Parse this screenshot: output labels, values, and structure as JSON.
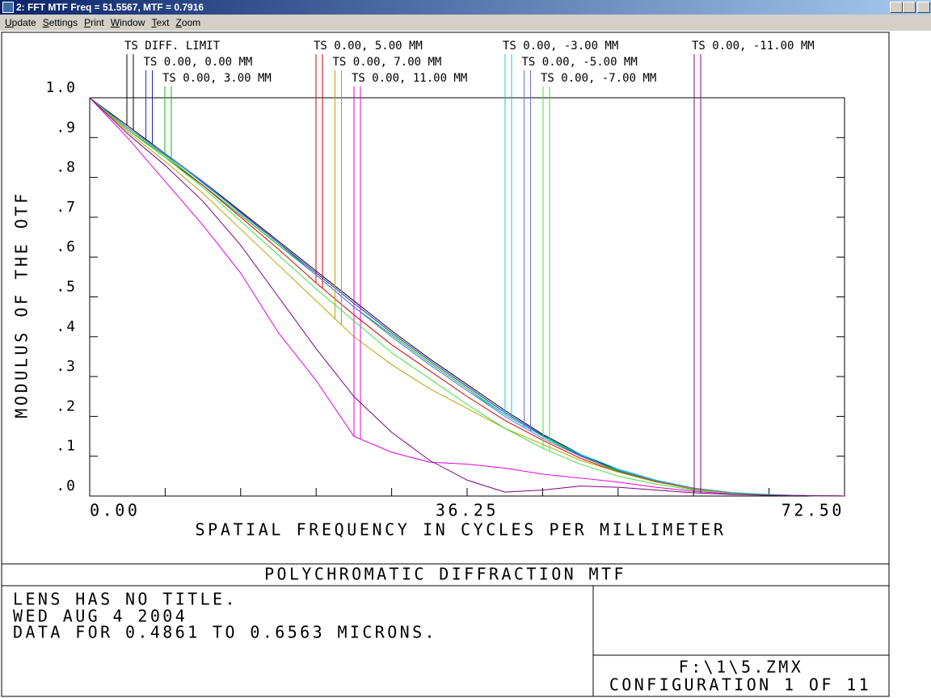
{
  "window": {
    "title": "2: FFT MTF Freq = 51.5567, MTF = 0.7916"
  },
  "menu": [
    "Update",
    "Settings",
    "Print",
    "Window",
    "Text",
    "Zoom"
  ],
  "chart_data": {
    "type": "line",
    "ylabel": "MODULUS OF THE OTF",
    "xlabel": "SPATIAL FREQUENCY IN CYCLES PER MILLIMETER",
    "xlim": [
      0,
      72.5
    ],
    "ylim": [
      0,
      1
    ],
    "xticks": [
      {
        "value": 0,
        "label": "0.00"
      },
      36.25,
      {
        "value": 72.5,
        "label": "72.50"
      }
    ],
    "xminor_ticks": [
      7.25,
      14.5,
      21.75,
      29,
      43.5,
      50.75,
      58,
      65.25
    ],
    "yticks": [
      {
        "value": 0,
        "label": ".0"
      },
      {
        "value": 0.1,
        "label": ".1"
      },
      {
        "value": 0.2,
        "label": ".2"
      },
      {
        "value": 0.3,
        "label": ".3"
      },
      {
        "value": 0.4,
        "label": ".4"
      },
      {
        "value": 0.5,
        "label": ".5"
      },
      {
        "value": 0.6,
        "label": ".6"
      },
      {
        "value": 0.7,
        "label": ".7"
      },
      {
        "value": 0.8,
        "label": ".8"
      },
      {
        "value": 0.9,
        "label": ".9"
      },
      {
        "value": 1,
        "label": "1.0"
      }
    ],
    "x": [
      0,
      3.625,
      7.25,
      10.875,
      14.5,
      18.125,
      21.75,
      25.375,
      29,
      32.625,
      36.25,
      39.875,
      43.5,
      47.125,
      50.75,
      54.375,
      58,
      61.625,
      65.25,
      68.875,
      72.5
    ],
    "series": [
      {
        "name": "TS DIFF. LIMIT",
        "color": "#000000",
        "values": [
          1,
          0.93,
          0.86,
          0.79,
          0.715,
          0.64,
          0.565,
          0.49,
          0.415,
          0.345,
          0.28,
          0.215,
          0.155,
          0.105,
          0.065,
          0.038,
          0.018,
          0.008,
          0.003,
          0.001,
          0
        ]
      },
      {
        "name": "TS 0.00, 0.00 MM",
        "color": "#2020d0",
        "values": [
          1,
          0.925,
          0.858,
          0.787,
          0.712,
          0.636,
          0.56,
          0.484,
          0.41,
          0.34,
          0.275,
          0.21,
          0.152,
          0.102,
          0.063,
          0.036,
          0.017,
          0.007,
          0.003,
          0.001,
          0
        ]
      },
      {
        "name": "TS 0.00, 3.00 MM",
        "color": "#00c000",
        "values": [
          1,
          0.92,
          0.855,
          0.78,
          0.705,
          0.63,
          0.555,
          0.475,
          0.405,
          0.335,
          0.27,
          0.205,
          0.15,
          0.1,
          0.062,
          0.036,
          0.017,
          0.007,
          0.003,
          0.001,
          0
        ]
      },
      {
        "name": "TS 0.00, 5.00 MM",
        "color": "#d00000",
        "values": [
          1,
          0.92,
          0.85,
          0.78,
          0.7,
          0.62,
          0.535,
          0.455,
          0.38,
          0.315,
          0.25,
          0.19,
          0.14,
          0.095,
          0.06,
          0.036,
          0.018,
          0.008,
          0.003,
          0.001,
          0
        ]
      },
      {
        "name": "TS 0.00, 7.00 MM",
        "color": "#b8a400",
        "values": [
          1,
          0.915,
          0.84,
          0.76,
          0.67,
          0.58,
          0.49,
          0.4,
          0.33,
          0.27,
          0.22,
          0.17,
          0.13,
          0.09,
          0.06,
          0.035,
          0.018,
          0.008,
          0.003,
          0.001,
          0
        ]
      },
      {
        "name": "TS 0.00, 11.00 MM",
        "color": "#e000e0",
        "values": [
          1,
          0.9,
          0.79,
          0.68,
          0.56,
          0.41,
          0.29,
          0.15,
          0.11,
          0.085,
          0.08,
          0.07,
          0.055,
          0.045,
          0.035,
          0.022,
          0.012,
          0.005,
          0.002,
          0.001,
          0
        ]
      },
      {
        "name": "TS 0.00, -3.00 MM",
        "color": "#00d0d0",
        "values": [
          1,
          0.925,
          0.86,
          0.785,
          0.71,
          0.635,
          0.555,
          0.475,
          0.4,
          0.33,
          0.265,
          0.205,
          0.15,
          0.105,
          0.068,
          0.04,
          0.02,
          0.009,
          0.004,
          0.001,
          0
        ]
      },
      {
        "name": "TS 0.00, -5.00 MM",
        "color": "#7070e0",
        "values": [
          1,
          0.925,
          0.86,
          0.79,
          0.71,
          0.635,
          0.555,
          0.475,
          0.4,
          0.33,
          0.265,
          0.2,
          0.145,
          0.1,
          0.065,
          0.038,
          0.02,
          0.009,
          0.003,
          0.001,
          0
        ]
      },
      {
        "name": "TS 0.00, -7.00 MM",
        "color": "#40e040",
        "values": [
          1,
          0.92,
          0.85,
          0.775,
          0.69,
          0.605,
          0.52,
          0.44,
          0.36,
          0.295,
          0.23,
          0.17,
          0.12,
          0.08,
          0.05,
          0.03,
          0.015,
          0.007,
          0.003,
          0.001,
          0
        ]
      },
      {
        "name": "TS 0.00, -11.00 MM",
        "color": "#800080",
        "values": [
          1,
          0.91,
          0.83,
          0.74,
          0.63,
          0.5,
          0.37,
          0.25,
          0.16,
          0.09,
          0.04,
          0.01,
          0.015,
          0.025,
          0.022,
          0.015,
          0.008,
          0.004,
          0.002,
          0.001,
          0
        ]
      }
    ]
  },
  "footer": {
    "title": "POLYCHROMATIC DIFFRACTION MTF",
    "lines": [
      "LENS HAS NO TITLE.",
      "WED AUG 4 2004",
      "DATA FOR 0.4861 TO 0.6563 MICRONS."
    ],
    "file": "F:\\1\\5.ZMX",
    "config": "CONFIGURATION 1 OF 11"
  }
}
